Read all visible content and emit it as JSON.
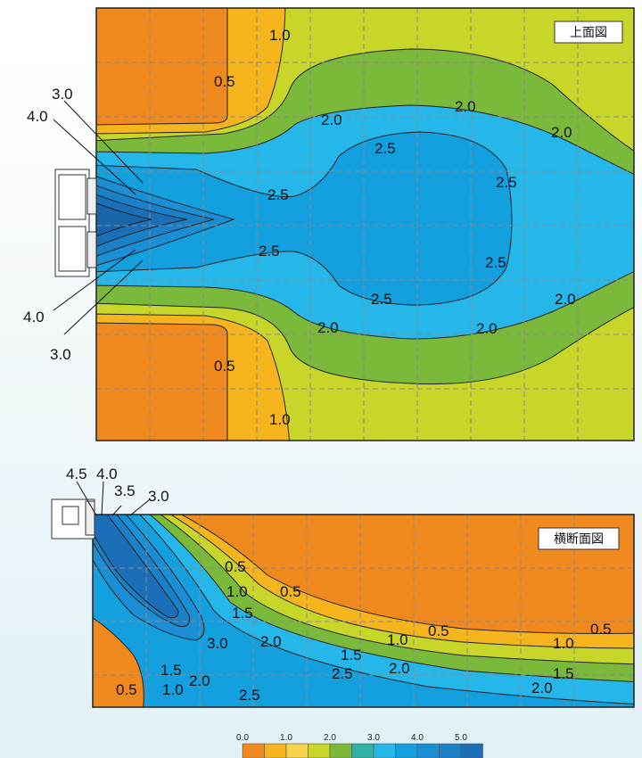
{
  "top_view": {
    "title": "上面図",
    "levels": {
      "l05": "0.5",
      "l10": "1.0",
      "l20": "2.0",
      "l25": "2.5",
      "l30": "3.0",
      "l40": "4.0"
    }
  },
  "cross_section": {
    "title": "横断面図",
    "levels": {
      "l05": "0.5",
      "l10": "1.0",
      "l15": "1.5",
      "l20": "2.0",
      "l25": "2.5",
      "l30": "3.0",
      "l35": "3.5",
      "l40": "4.0",
      "l45": "4.5"
    }
  },
  "legend": {
    "ticks": [
      "0.0",
      "1.0",
      "2.0",
      "3.0",
      "4.0",
      "5.0"
    ],
    "colors": [
      "#f08a1e",
      "#f6b51c",
      "#f6d54a",
      "#c8d62a",
      "#7ab93a",
      "#2fb3a7",
      "#25b6ea",
      "#14a0df",
      "#1b8fd6",
      "#1a80c8",
      "#1a6fb8"
    ]
  },
  "colors": {
    "orange": "#f08a1e",
    "amber": "#f6b51c",
    "lime": "#c8d62a",
    "green": "#7ab93a",
    "cyan": "#25b6ea",
    "blue": "#1b8fd6",
    "deepblue": "#1a6fb8"
  }
}
